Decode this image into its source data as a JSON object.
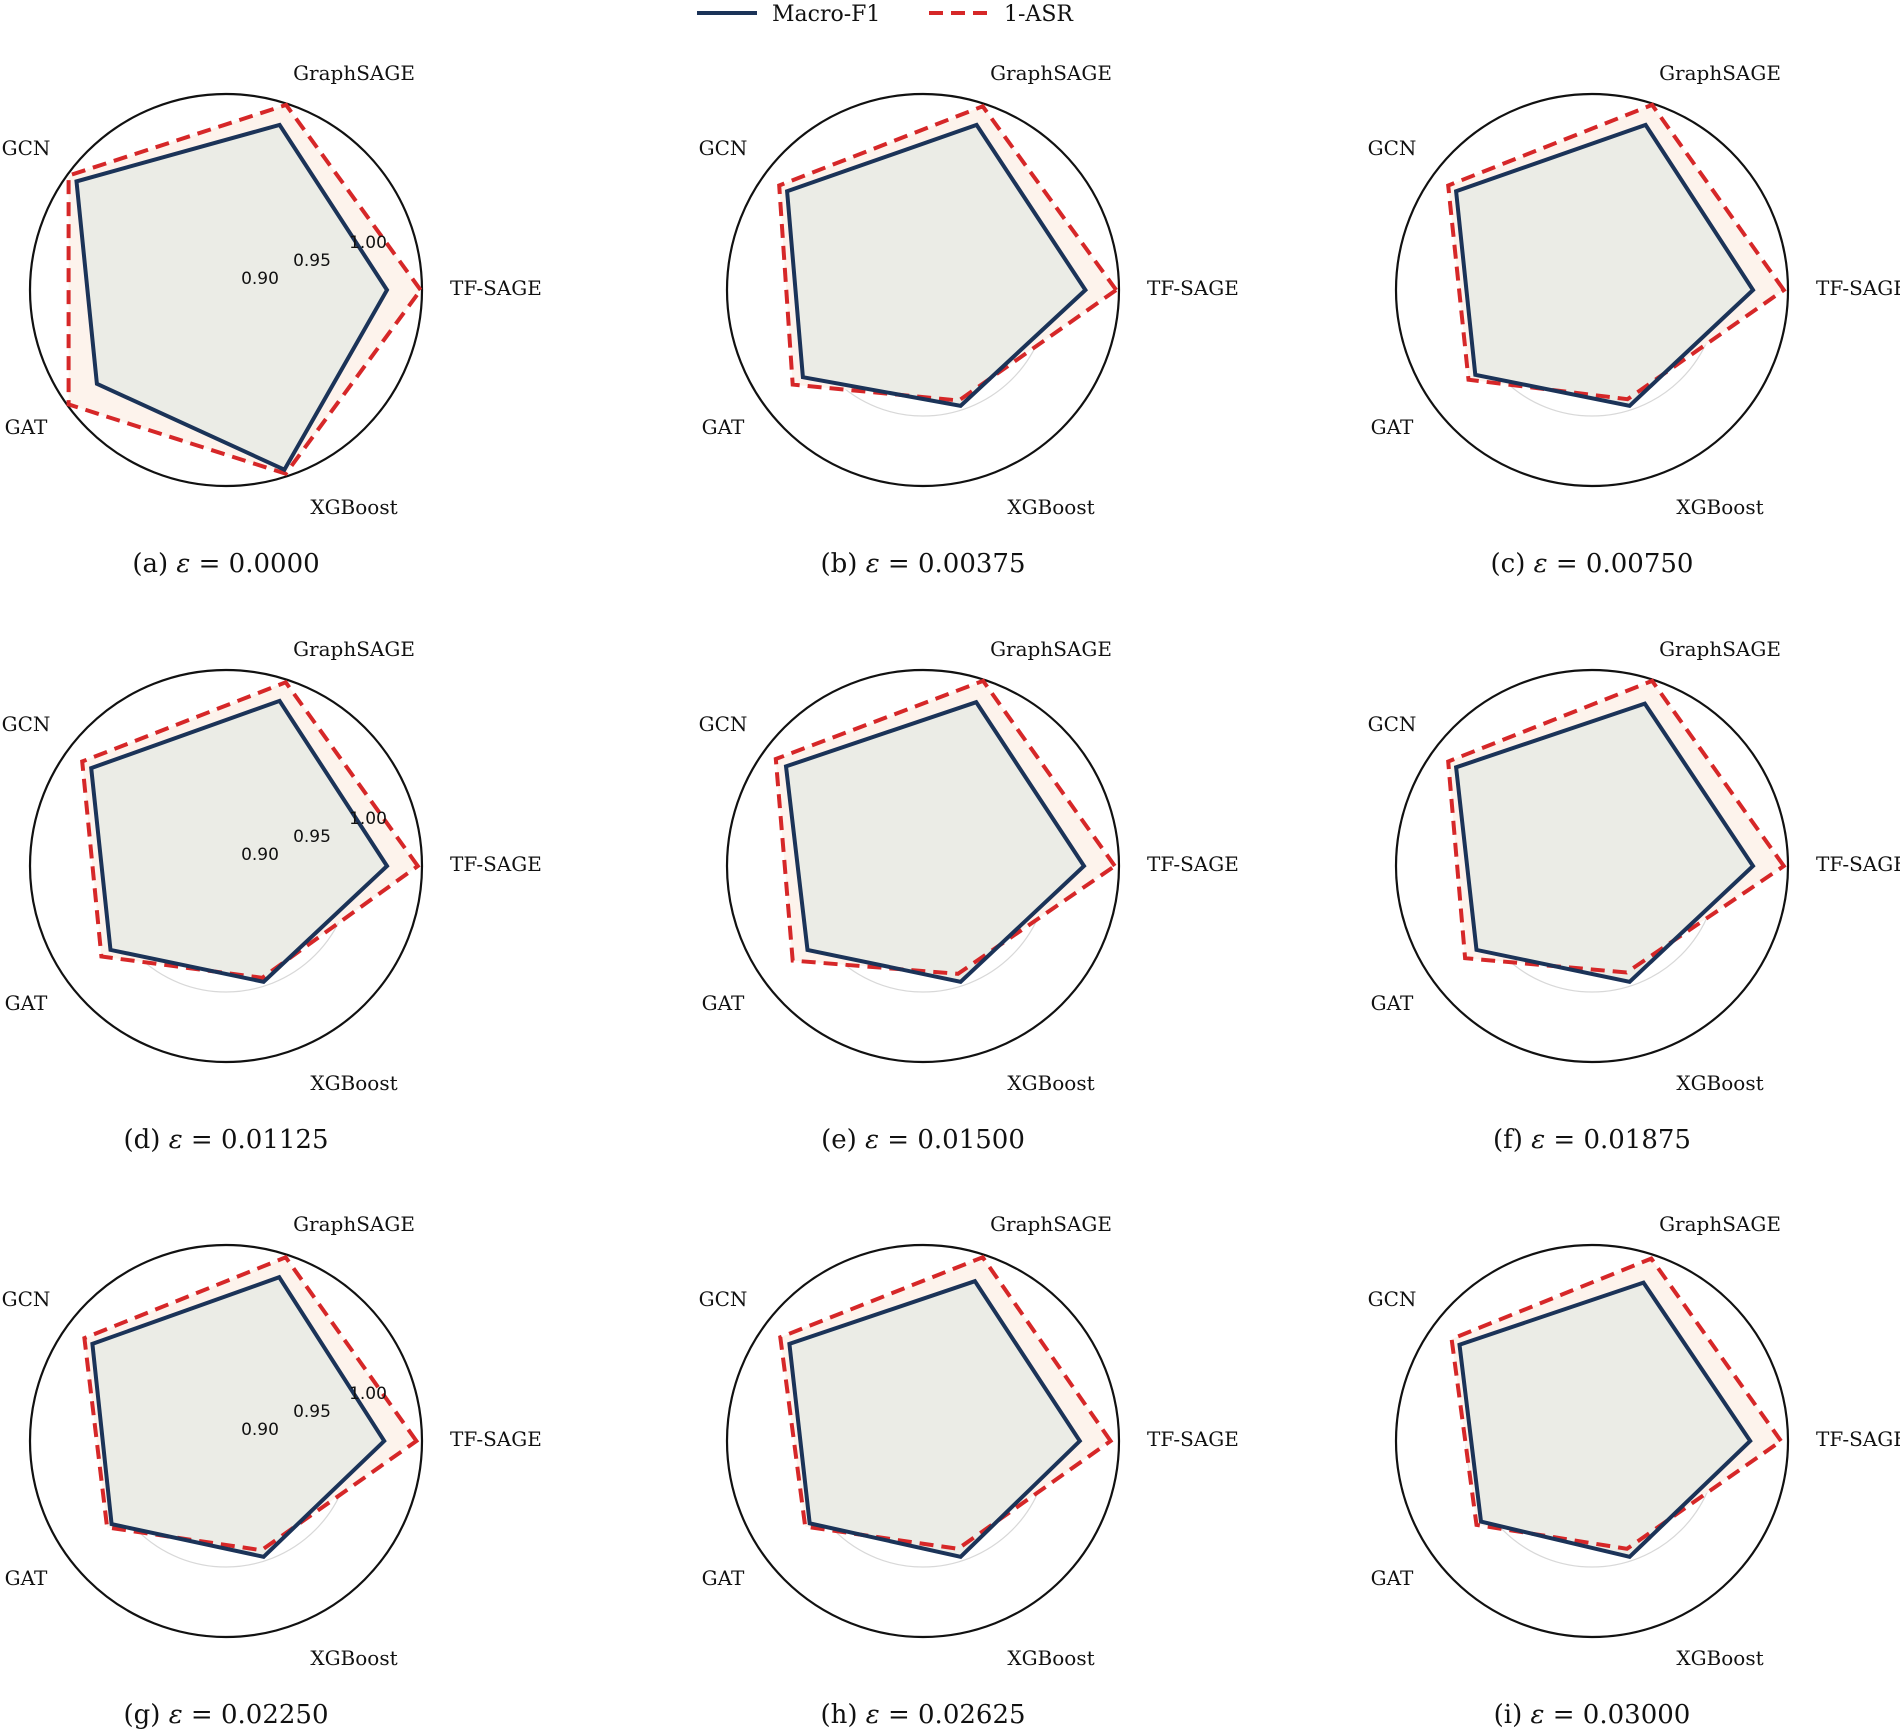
{
  "legend": {
    "macro_label": "Macro-F1",
    "asr_label": "1-ASR",
    "macro_color": "#1b3358",
    "asr_color": "#d62728",
    "fill_asr": "#fdf3ec",
    "fill_inner": "#ebece6",
    "placement": "top-center"
  },
  "chart_data": [
    {
      "type": "radar",
      "label": "(a)",
      "epsilon": "0.0000",
      "categories": [
        "TF-SAGE",
        "GraphSAGE",
        "GCN",
        "GAT",
        "XGBoost"
      ],
      "rticks": [
        "0.90",
        "0.95",
        "1.00"
      ],
      "show_rticks": true,
      "rlim": [
        0.86,
        1.0
      ],
      "series": [
        {
          "name": "Macro-F1",
          "values": [
            0.975,
            0.984,
            0.992,
            0.974,
            0.995
          ]
        },
        {
          "name": "1-ASR",
          "values": [
            0.999,
            0.999,
            0.999,
            0.999,
            0.998
          ]
        }
      ]
    },
    {
      "type": "radar",
      "label": "(b)",
      "epsilon": "0.00375",
      "categories": [
        "TF-SAGE",
        "GraphSAGE",
        "GCN",
        "GAT",
        "XGBoost"
      ],
      "rticks": [
        "0.90",
        "0.95",
        "1.00"
      ],
      "show_rticks": false,
      "rlim": [
        0.86,
        1.0
      ],
      "series": [
        {
          "name": "Macro-F1",
          "values": [
            0.976,
            0.984,
            0.98,
            0.966,
            0.947
          ]
        },
        {
          "name": "1-ASR",
          "values": [
            0.998,
            0.998,
            0.987,
            0.975,
            0.943
          ]
        }
      ]
    },
    {
      "type": "radar",
      "label": "(c)",
      "epsilon": "0.00750",
      "categories": [
        "TF-SAGE",
        "GraphSAGE",
        "GCN",
        "GAT",
        "XGBoost"
      ],
      "rticks": [
        "0.90",
        "0.95",
        "1.00"
      ],
      "show_rticks": false,
      "rlim": [
        0.86,
        1.0
      ],
      "series": [
        {
          "name": "Macro-F1",
          "values": [
            0.975,
            0.984,
            0.98,
            0.963,
            0.947
          ]
        },
        {
          "name": "1-ASR",
          "values": [
            0.997,
            0.999,
            0.987,
            0.969,
            0.942
          ]
        }
      ]
    },
    {
      "type": "radar",
      "label": "(d)",
      "epsilon": "0.01125",
      "categories": [
        "TF-SAGE",
        "GraphSAGE",
        "GCN",
        "GAT",
        "XGBoost"
      ],
      "rticks": [
        "0.90",
        "0.95",
        "1.00"
      ],
      "show_rticks": true,
      "rlim": [
        0.86,
        1.0
      ],
      "series": [
        {
          "name": "Macro-F1",
          "values": [
            0.975,
            0.984,
            0.979,
            0.962,
            0.947
          ]
        },
        {
          "name": "1-ASR",
          "values": [
            0.997,
            0.998,
            0.987,
            0.97,
            0.944
          ]
        }
      ]
    },
    {
      "type": "radar",
      "label": "(e)",
      "epsilon": "0.01500",
      "categories": [
        "TF-SAGE",
        "GraphSAGE",
        "GCN",
        "GAT",
        "XGBoost"
      ],
      "rticks": [
        "0.90",
        "0.95",
        "1.00"
      ],
      "show_rticks": false,
      "rlim": [
        0.86,
        1.0
      ],
      "series": [
        {
          "name": "Macro-F1",
          "values": [
            0.975,
            0.983,
            0.981,
            0.962,
            0.947
          ]
        },
        {
          "name": "1-ASR",
          "values": [
            0.997,
            0.999,
            0.99,
            0.975,
            0.941
          ]
        }
      ]
    },
    {
      "type": "radar",
      "label": "(f)",
      "epsilon": "0.01875",
      "categories": [
        "TF-SAGE",
        "GraphSAGE",
        "GCN",
        "GAT",
        "XGBoost"
      ],
      "rticks": [
        "0.90",
        "0.95",
        "1.00"
      ],
      "show_rticks": false,
      "rlim": [
        0.86,
        1.0
      ],
      "series": [
        {
          "name": "Macro-F1",
          "values": [
            0.975,
            0.982,
            0.98,
            0.962,
            0.947
          ]
        },
        {
          "name": "1-ASR",
          "values": [
            0.997,
            0.999,
            0.987,
            0.972,
            0.94
          ]
        }
      ]
    },
    {
      "type": "radar",
      "label": "(g)",
      "epsilon": "0.02250",
      "categories": [
        "TF-SAGE",
        "GraphSAGE",
        "GCN",
        "GAT",
        "XGBoost"
      ],
      "rticks": [
        "0.90",
        "0.95",
        "1.00"
      ],
      "show_rticks": true,
      "rlim": [
        0.86,
        1.0
      ],
      "series": [
        {
          "name": "Macro-F1",
          "values": [
            0.973,
            0.983,
            0.978,
            0.961,
            0.947
          ]
        },
        {
          "name": "1-ASR",
          "values": [
            0.996,
            0.998,
            0.985,
            0.965,
            0.942
          ]
        }
      ]
    },
    {
      "type": "radar",
      "label": "(h)",
      "epsilon": "0.02625",
      "categories": [
        "TF-SAGE",
        "GraphSAGE",
        "GCN",
        "GAT",
        "XGBoost"
      ],
      "rticks": [
        "0.90",
        "0.95",
        "1.00"
      ],
      "show_rticks": false,
      "rlim": [
        0.86,
        1.0
      ],
      "series": [
        {
          "name": "Macro-F1",
          "values": [
            0.972,
            0.98,
            0.978,
            0.96,
            0.947
          ]
        },
        {
          "name": "1-ASR",
          "values": [
            0.994,
            0.998,
            0.986,
            0.964,
            0.941
          ]
        }
      ]
    },
    {
      "type": "radar",
      "label": "(i)",
      "epsilon": "0.03000",
      "categories": [
        "TF-SAGE",
        "GraphSAGE",
        "GCN",
        "GAT",
        "XGBoost"
      ],
      "rticks": [
        "0.90",
        "0.95",
        "1.00"
      ],
      "show_rticks": false,
      "rlim": [
        0.86,
        1.0
      ],
      "series": [
        {
          "name": "Macro-F1",
          "values": [
            0.973,
            0.979,
            0.977,
            0.958,
            0.947
          ]
        },
        {
          "name": "1-ASR",
          "values": [
            0.995,
            0.997,
            0.984,
            0.962,
            0.941
          ]
        }
      ]
    }
  ]
}
